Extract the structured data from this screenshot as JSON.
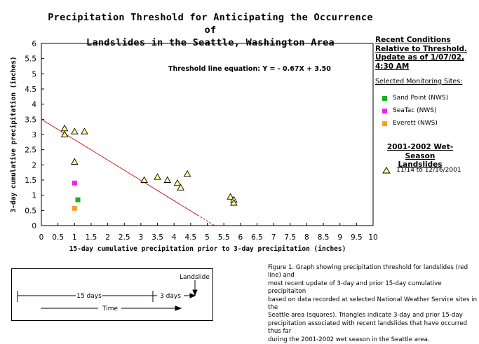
{
  "title_lines": [
    "Precipitation Threshold for Anticipating the Occurrence of",
    "Landslides in the Seattle, Washington Area"
  ],
  "chart_data": {
    "type": "scatter",
    "xlabel": "15-day cumulative precipitation prior to 3-day precipitation (inches)",
    "ylabel": "3-day cumulative precipitation (inches)",
    "xlim": [
      0,
      10
    ],
    "ylim": [
      0,
      6
    ],
    "xticks": [
      "0",
      "0.5",
      "1",
      "1.5",
      "2",
      "2.5",
      "3",
      "3.5",
      "4",
      "4.5",
      "5",
      "5.5",
      "6",
      "6.5",
      "7",
      "7.5",
      "8",
      "8.5",
      "9",
      "9.5",
      "10"
    ],
    "yticks": [
      "0",
      "0.5",
      "1",
      "1.5",
      "2",
      "2.5",
      "3",
      "3.5",
      "4",
      "4.5",
      "5",
      "5.5",
      "6"
    ],
    "grid": false,
    "threshold": {
      "equation": "Threshold line equation:  Y = - 0.67X + 3.50",
      "slope": -0.67,
      "intercept": 3.5,
      "x_start": 0,
      "x_end": 5.2,
      "dashed_from": 4.7,
      "color": "#cc2020"
    },
    "landslides": {
      "name": "11/14 to 12/16/2001",
      "marker": "triangle",
      "color": "#ffff99",
      "points": [
        {
          "x": 0.7,
          "y": 3.2
        },
        {
          "x": 0.7,
          "y": 3.0
        },
        {
          "x": 1.0,
          "y": 3.1
        },
        {
          "x": 1.3,
          "y": 3.1
        },
        {
          "x": 1.0,
          "y": 2.1
        },
        {
          "x": 3.1,
          "y": 1.5
        },
        {
          "x": 3.5,
          "y": 1.6
        },
        {
          "x": 3.8,
          "y": 1.5
        },
        {
          "x": 4.1,
          "y": 1.4
        },
        {
          "x": 4.2,
          "y": 1.25
        },
        {
          "x": 4.4,
          "y": 1.7
        },
        {
          "x": 5.7,
          "y": 0.95
        },
        {
          "x": 5.8,
          "y": 0.85
        },
        {
          "x": 5.8,
          "y": 0.75
        }
      ]
    },
    "sites": [
      {
        "name": "Sand Point (NWS)",
        "color": "#22aa22",
        "x": 1.1,
        "y": 0.85
      },
      {
        "name": "SeaTac (NWS)",
        "color": "#ee22ee",
        "x": 1.0,
        "y": 1.4
      },
      {
        "name": "Everett (NWS)",
        "color": "#f7a020",
        "x": 1.0,
        "y": 0.57
      }
    ]
  },
  "legend": {
    "recent_lines": [
      "Recent Conditions",
      "Relative to Threshold.",
      "Update as of 1/07/02,",
      "4:30 AM"
    ],
    "sites_title": "Selected  Monitoring Sites:",
    "wet_season_lines": [
      "2001-2002 Wet-Season",
      "Landslides"
    ]
  },
  "caption_lines": [
    "Figure 1.  Graph showing precipitation threshold for landslides (red line) and",
    "most recent update of  3-day and prior 15-day cumulative precipitaiton",
    "based on data recorded at selected National Weather Service sites in the",
    "Seattle area (squares). Triangles indicate 3-day and prior 15-day",
    "precipitation associated with recent landslides that have occurred thus far",
    "during the 2001-2002 wet season in the Seattle area."
  ],
  "timeline": {
    "landslide_label": "Landslide",
    "days15_label": "15 days",
    "days3_label": "3 days",
    "time_label": "Time"
  }
}
